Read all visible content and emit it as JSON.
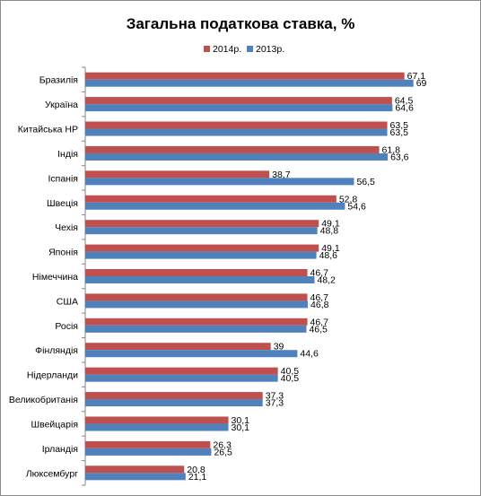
{
  "chart_data": {
    "type": "bar",
    "orientation": "horizontal",
    "title": "Загальна податкова ставка, %",
    "xlabel": "",
    "ylabel": "",
    "xlim": [
      0,
      75
    ],
    "grid": false,
    "legend_position": "top",
    "categories": [
      "Бразилія",
      "Україна",
      "Китайська НР",
      "Індія",
      "Іспанія",
      "Швеція",
      "Чехія",
      "Японія",
      "Німеччина",
      "США",
      "Росія",
      "Фінляндія",
      "Нідерланди",
      "Великобританія",
      "Швейцарія",
      "Ірландія",
      "Люксембург"
    ],
    "series": [
      {
        "name": "2014р.",
        "color": "#c0504d",
        "values": [
          67.1,
          64.5,
          63.5,
          61.8,
          38.7,
          52.8,
          49.1,
          49.1,
          46.7,
          46.7,
          46.7,
          39,
          40.5,
          37.3,
          30.1,
          26.3,
          20.8
        ],
        "labels": [
          "67,1",
          "64,5",
          "63,5",
          "61,8",
          "38,7",
          "52,8",
          "49,1",
          "49,1",
          "46,7",
          "46,7",
          "46,7",
          "39",
          "40,5",
          "37,3",
          "30,1",
          "26,3",
          "20,8"
        ]
      },
      {
        "name": "2013р.",
        "color": "#4f81bd",
        "values": [
          69,
          64.6,
          63.5,
          63.6,
          56.5,
          54.6,
          48.8,
          48.6,
          48.2,
          46.8,
          46.5,
          44.6,
          40.5,
          37.3,
          30.1,
          26.5,
          21.1
        ],
        "labels": [
          "69",
          "64,6",
          "63,5",
          "63,6",
          "56,5",
          "54,6",
          "48,8",
          "48,6",
          "48,2",
          "46,8",
          "46,5",
          "44,6",
          "40,5",
          "37,3",
          "30,1",
          "26,5",
          "21,1"
        ]
      }
    ]
  }
}
